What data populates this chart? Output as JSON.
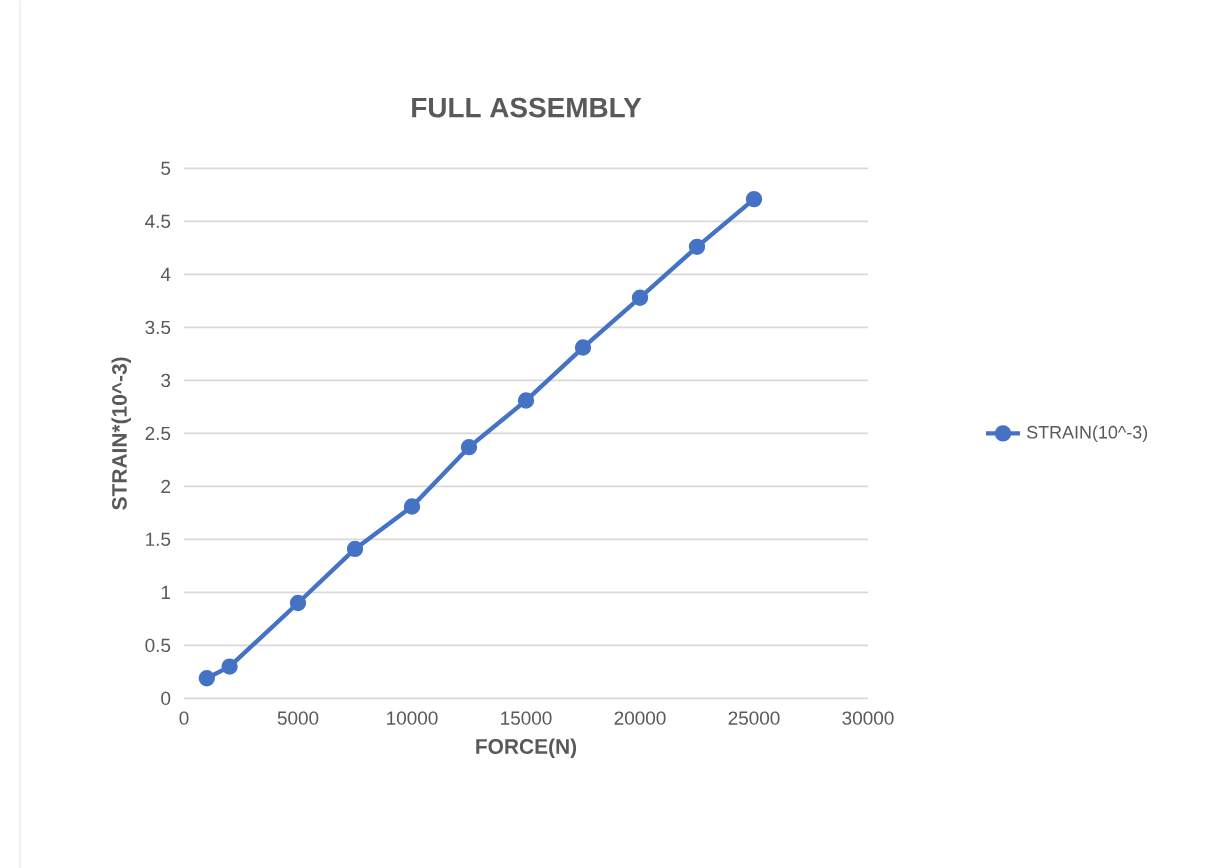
{
  "chart_data": {
    "type": "line",
    "title": "FULL ASSEMBLY",
    "xlabel": "FORCE(N)",
    "ylabel": "STRAIN*(10^-3)",
    "x": [
      1000,
      2000,
      5000,
      7500,
      10000,
      12500,
      15000,
      17500,
      20000,
      22500,
      25000
    ],
    "series": [
      {
        "name": "STRAIN(10^-3)",
        "color": "#4472c4",
        "values": [
          0.19,
          0.3,
          0.9,
          1.41,
          1.81,
          2.37,
          2.81,
          3.31,
          3.78,
          4.26,
          4.71
        ]
      }
    ],
    "xlim": [
      0,
      30000
    ],
    "xticks": [
      0,
      5000,
      10000,
      15000,
      20000,
      25000,
      30000
    ],
    "ylim": [
      0,
      5
    ],
    "yticks": [
      0,
      0.5,
      1,
      1.5,
      2,
      2.5,
      3,
      3.5,
      4,
      4.5,
      5
    ],
    "grid": "y",
    "legend": "right",
    "marker": "circle",
    "line_style": "solid"
  }
}
